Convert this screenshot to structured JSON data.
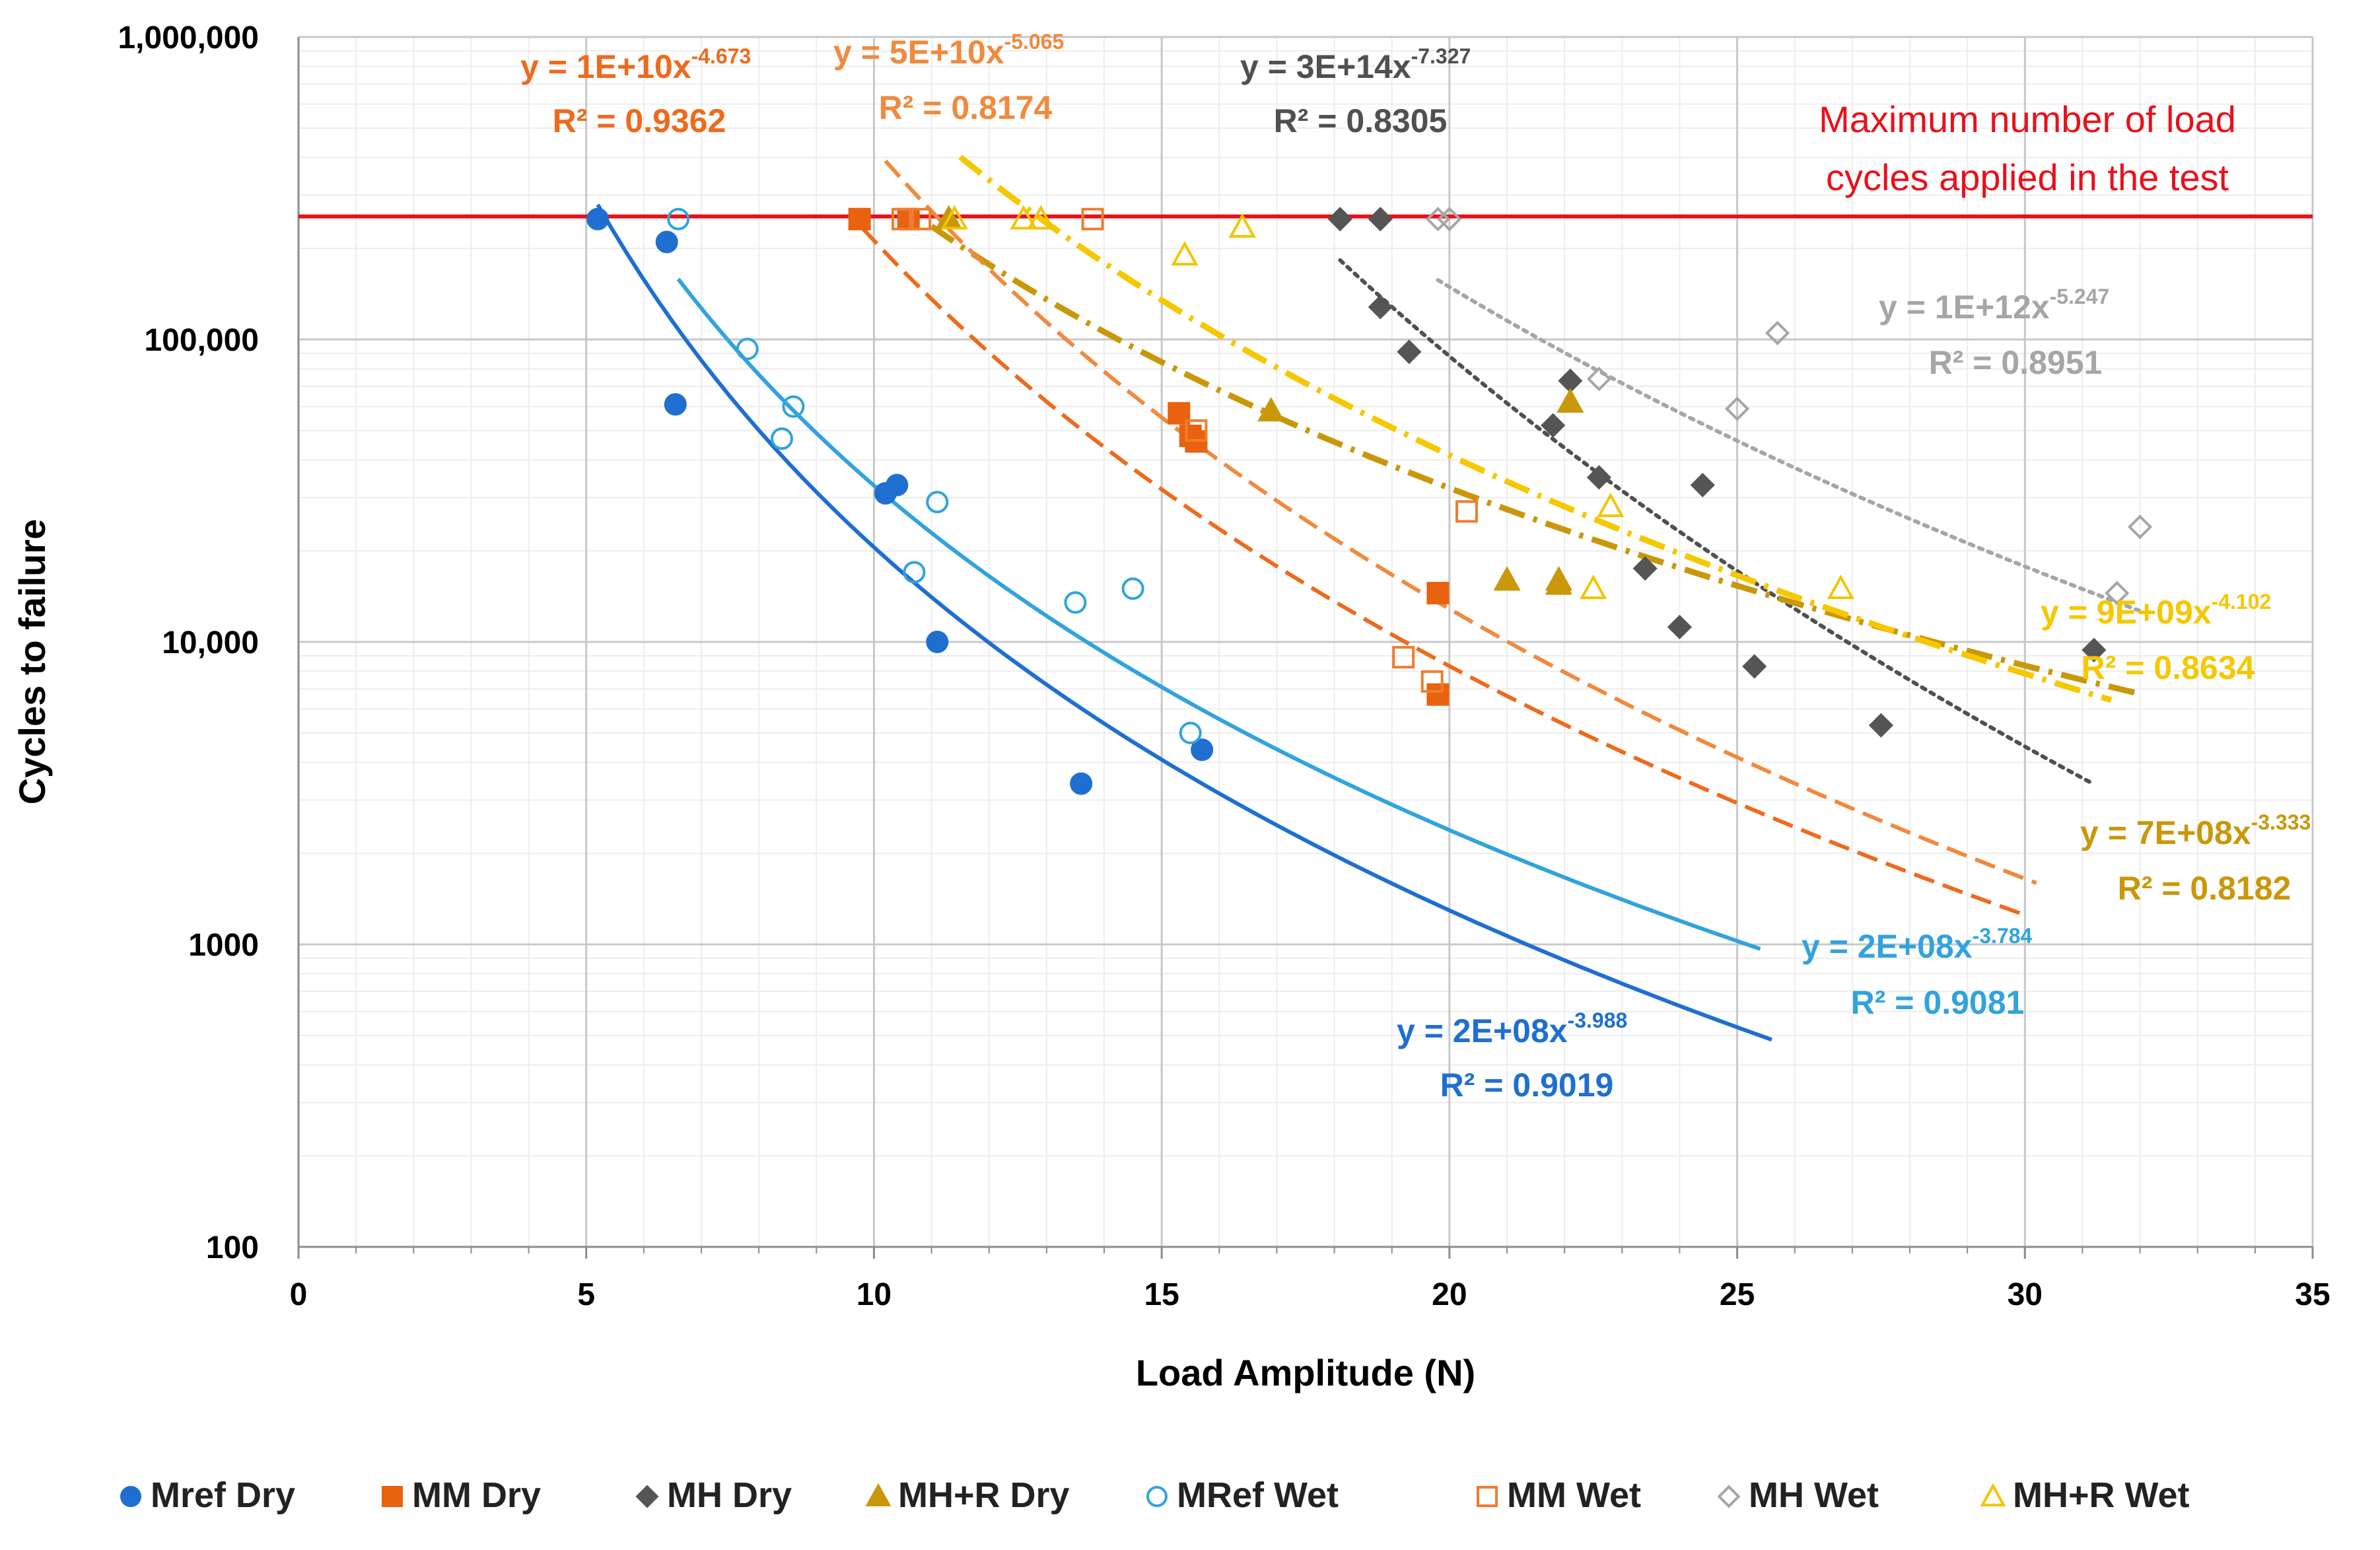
{
  "chart_data": {
    "type": "scatter",
    "title": "",
    "xlabel": "Load Amplitude (N)",
    "ylabel": "Cycles to failure",
    "xlim": [
      0,
      35
    ],
    "ylim": [
      100,
      1000000
    ],
    "yscale": "log",
    "grid": true,
    "legend_position": "bottom",
    "x_ticks": [
      "0",
      "5",
      "10",
      "15",
      "20",
      "25",
      "30",
      "35"
    ],
    "y_ticks": [
      "100",
      "1000",
      "10,000",
      "100,000",
      "1,000,000"
    ],
    "reference_line": {
      "y": 255000,
      "color": "#e8111b",
      "label_line1": "Maximum number of load",
      "label_line2": "cycles applied in the test"
    },
    "series": [
      {
        "name": "Mref Dry",
        "marker": "circle",
        "filled": true,
        "color": "#1f6fd1",
        "points": [
          [
            5.2,
            250000
          ],
          [
            6.4,
            210000
          ],
          [
            6.55,
            61000
          ],
          [
            10.2,
            31000
          ],
          [
            10.4,
            33000
          ],
          [
            11.1,
            10000
          ],
          [
            13.6,
            3400
          ],
          [
            15.7,
            4400
          ]
        ],
        "trend": {
          "a": 200000000.0,
          "b": -3.988,
          "x_range": [
            5.2,
            25.6
          ],
          "style": "solid",
          "color": "#1f6fd1",
          "eq_base": "y = 2E+08x",
          "eq_exp": "-3.988",
          "r2": "R² = 0.9019"
        }
      },
      {
        "name": "MM Dry",
        "marker": "square",
        "filled": true,
        "color": "#e86210",
        "points": [
          [
            9.75,
            250000
          ],
          [
            10.6,
            250000
          ],
          [
            15.3,
            57000
          ],
          [
            15.5,
            48000
          ],
          [
            15.6,
            46000
          ],
          [
            19.8,
            14500
          ],
          [
            19.8,
            6700
          ]
        ],
        "trend": {
          "a": 10000000000.0,
          "b": -4.673,
          "x_range": [
            9.8,
            30.0
          ],
          "style": "dashed",
          "color": "#ee6a1c",
          "eq_base": "y = 1E+10x",
          "eq_exp": "-4.673",
          "r2": "R² = 0.9362"
        }
      },
      {
        "name": "MH Dry",
        "marker": "diamond",
        "filled": true,
        "color": "#555555",
        "points": [
          [
            18.1,
            250000
          ],
          [
            18.8,
            250000
          ],
          [
            18.8,
            128000
          ],
          [
            19.3,
            91000
          ],
          [
            21.8,
            52000
          ],
          [
            22.1,
            73000
          ],
          [
            22.6,
            35000
          ],
          [
            23.4,
            17500
          ],
          [
            24.0,
            11200
          ],
          [
            24.4,
            33000
          ],
          [
            25.3,
            8300
          ],
          [
            27.5,
            5300
          ],
          [
            31.2,
            9400
          ]
        ],
        "trend": {
          "a": 300000000000000.0,
          "b": -7.327,
          "x_range": [
            18.1,
            31.2
          ],
          "style": "dotted",
          "color": "#505050",
          "eq_base": "y = 3E+14x",
          "eq_exp": "-7.327",
          "r2": "R² = 0.8305"
        }
      },
      {
        "name": "MH+R Dry",
        "marker": "triangle",
        "filled": true,
        "color": "#c9980a",
        "points": [
          [
            11.3,
            250000
          ],
          [
            16.9,
            58000
          ],
          [
            21.0,
            16000
          ],
          [
            21.9,
            16000
          ],
          [
            21.9,
            15500
          ],
          [
            22.1,
            62000
          ]
        ],
        "trend": {
          "a": 700000000.0,
          "b": -3.333,
          "x_range": [
            11.0,
            32.0
          ],
          "style": "dashdot",
          "color": "#c9980a",
          "eq_base": "y = 7E+08x",
          "eq_exp": "-3.333",
          "r2": "R² = 0.8182"
        }
      },
      {
        "name": "MRef Wet",
        "marker": "circle",
        "filled": false,
        "color": "#31a3dd",
        "points": [
          [
            6.6,
            250000
          ],
          [
            7.8,
            93000
          ],
          [
            8.4,
            47000
          ],
          [
            8.6,
            60000
          ],
          [
            10.7,
            17000
          ],
          [
            11.1,
            29000
          ],
          [
            13.5,
            13500
          ],
          [
            14.5,
            15000
          ],
          [
            15.5,
            5000
          ]
        ],
        "trend": {
          "a": 200000000.0,
          "b": -3.784,
          "x_range": [
            6.6,
            25.4
          ],
          "style": "solid",
          "color": "#31a3dd",
          "eq_base": "y = 2E+08x",
          "eq_exp": "-3.784",
          "r2": "R² = 0.9081"
        }
      },
      {
        "name": "MM Wet",
        "marker": "square",
        "filled": false,
        "color": "#ef7d30",
        "points": [
          [
            10.5,
            250000
          ],
          [
            10.8,
            250000
          ],
          [
            13.8,
            250000
          ],
          [
            15.6,
            50000
          ],
          [
            19.2,
            8900
          ],
          [
            19.7,
            7400
          ],
          [
            20.3,
            27000
          ]
        ],
        "trend": {
          "a": 50000000000.0,
          "b": -5.065,
          "x_range": [
            10.2,
            30.2
          ],
          "style": "dashed",
          "color": "#f08a3e",
          "eq_base": "y = 5E+10x",
          "eq_exp": "-5.065",
          "r2": "R² = 0.8174"
        }
      },
      {
        "name": "MH Wet",
        "marker": "diamond",
        "filled": false,
        "color": "#a6a6a6",
        "points": [
          [
            19.8,
            250000
          ],
          [
            20.0,
            250000
          ],
          [
            22.6,
            74000
          ],
          [
            25.0,
            59000
          ],
          [
            25.7,
            105000
          ],
          [
            31.6,
            14500
          ],
          [
            32.0,
            24000
          ]
        ],
        "trend": {
          "a": 1000000000000.0,
          "b": -5.247,
          "x_range": [
            19.8,
            32.0
          ],
          "style": "dotted",
          "color": "#a6a6a6",
          "eq_base": "y = 1E+12x",
          "eq_exp": "-5.247",
          "r2": "R² = 0.8951"
        }
      },
      {
        "name": "MH+R Wet",
        "marker": "triangle",
        "filled": false,
        "color": "#f2c500",
        "points": [
          [
            11.4,
            250000
          ],
          [
            12.6,
            250000
          ],
          [
            12.9,
            250000
          ],
          [
            15.4,
            190000
          ],
          [
            16.4,
            235000
          ],
          [
            22.5,
            15000
          ],
          [
            22.8,
            28000
          ],
          [
            26.8,
            15000
          ]
        ],
        "trend": {
          "a": 9000000000.0,
          "b": -4.102,
          "x_range": [
            11.5,
            31.5
          ],
          "style": "dashdot",
          "color": "#f5c800",
          "eq_base": "y = 9E+09x",
          "eq_exp": "-4.102",
          "r2": "R² = 0.8634"
        }
      }
    ]
  }
}
